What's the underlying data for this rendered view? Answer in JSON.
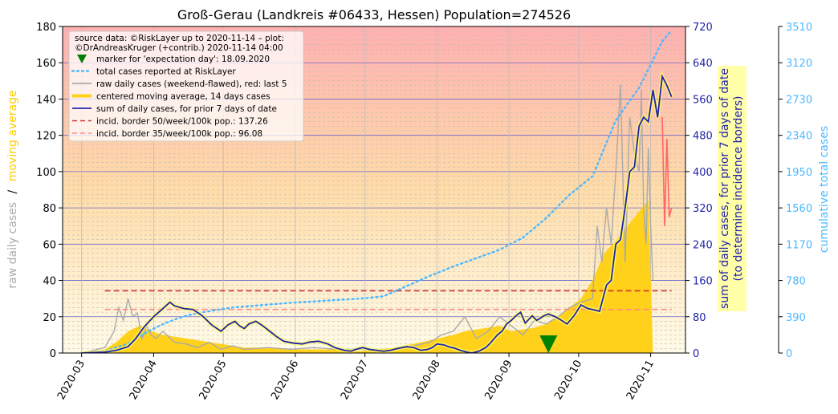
{
  "chart_data": {
    "type": "line",
    "title": "Groß-Gerau (Landkreis #06433, Hessen) Population=274526",
    "source_text": [
      "source data: ©RiskLayer up to 2020-11-14 – plot:",
      "©DrAndreasKruger (+contrib.) 2020-11-14 04:00"
    ],
    "x_labels": [
      "2020-03",
      "2020-04",
      "2020-05",
      "2020-06",
      "2020-07",
      "2020-08",
      "2020-09",
      "2020-10",
      "2020-11"
    ],
    "y_left": {
      "label_gray": "raw daily cases",
      "label_sep": "/",
      "label_gold": "moving average",
      "ticks": [
        0,
        20,
        40,
        60,
        80,
        100,
        120,
        140,
        160,
        180
      ],
      "range": [
        0,
        180
      ]
    },
    "y_right1": {
      "label_line1": "sum of daily cases, for prior 7 days of date",
      "label_line2": "(to determine incidence borders)",
      "ticks": [
        0,
        80,
        160,
        240,
        320,
        400,
        480,
        560,
        640,
        720
      ],
      "range": [
        0,
        720
      ]
    },
    "y_right2": {
      "label": "cumulative total cases",
      "ticks": [
        0,
        390,
        780,
        1170,
        1560,
        1950,
        2340,
        2730,
        3120,
        3510
      ],
      "range": [
        0,
        3510
      ]
    },
    "legend": [
      {
        "key": "marker",
        "label": "marker for 'expectation day': 18.09.2020",
        "color": "#008000"
      },
      {
        "key": "total",
        "label": "total cases reported at RiskLayer",
        "color": "#4db8ff"
      },
      {
        "key": "raw",
        "label": "raw daily cases (weekend-flawed), red: last 5",
        "color": "#aaaaaa"
      },
      {
        "key": "avg",
        "label": "centered moving average, 14 days cases",
        "color": "#ffd11a"
      },
      {
        "key": "sum7",
        "label": "sum of daily cases, for prior 7 days of date",
        "color": "#2222aa"
      },
      {
        "key": "b50",
        "label": "incid. border 50/week/100k pop.: 137.26",
        "color": "#cc3333"
      },
      {
        "key": "b35",
        "label": "incid. border 35/week/100k pop.: 96.08",
        "color": "#ff8888"
      }
    ],
    "borders": {
      "b50": 137.26,
      "b35": 96.08
    },
    "expectation_day": "2020-09-18",
    "colors": {
      "sum7": "#2222aa",
      "cumulative": "#4db8ff",
      "avg": "#ffd11a",
      "raw": "#aaaaaa",
      "recent": "#ff6666",
      "marker": "#008000"
    },
    "series": {
      "sum7_days": [
        0,
        5,
        10,
        15,
        20,
        23,
        27,
        31,
        35,
        38,
        40,
        44,
        48,
        52,
        56,
        60,
        63,
        66,
        68,
        70,
        72,
        75,
        78,
        81,
        84,
        87,
        91,
        95,
        98,
        102,
        106,
        109,
        113,
        116,
        118,
        121,
        124,
        127,
        130,
        133,
        136,
        140,
        143,
        146,
        149,
        151,
        153,
        156,
        158,
        161,
        163,
        166,
        168,
        171,
        174,
        176,
        179,
        181,
        183,
        185,
        187,
        189,
        191,
        194,
        196,
        199,
        201,
        204,
        206,
        209,
        212,
        215,
        218,
        220,
        223,
        226,
        228,
        230,
        232,
        234,
        236,
        238,
        240,
        242,
        244,
        246,
        248,
        250,
        252,
        254
      ],
      "sum7_values": [
        0,
        1,
        2,
        6,
        14,
        30,
        58,
        80,
        98,
        112,
        104,
        98,
        96,
        82,
        62,
        48,
        62,
        70,
        60,
        54,
        64,
        70,
        60,
        48,
        36,
        26,
        22,
        20,
        24,
        26,
        20,
        12,
        6,
        4,
        8,
        12,
        8,
        6,
        4,
        6,
        10,
        14,
        12,
        6,
        8,
        12,
        20,
        18,
        14,
        10,
        6,
        2,
        0,
        4,
        12,
        22,
        40,
        48,
        64,
        72,
        82,
        90,
        66,
        82,
        72,
        82,
        86,
        80,
        74,
        64,
        82,
        106,
        98,
        96,
        92,
        150,
        160,
        240,
        250,
        320,
        400,
        410,
        500,
        520,
        510,
        580,
        520,
        610,
        590,
        565
      ],
      "cum_days": [
        0,
        10,
        20,
        25,
        30,
        35,
        40,
        45,
        50,
        55,
        60,
        65,
        70,
        80,
        90,
        100,
        110,
        120,
        130,
        140,
        150,
        160,
        170,
        180,
        190,
        200,
        210,
        220,
        230,
        240,
        245,
        250,
        254
      ],
      "cum_values": [
        0,
        20,
        100,
        180,
        250,
        310,
        360,
        400,
        430,
        450,
        470,
        490,
        500,
        520,
        540,
        555,
        570,
        585,
        610,
        720,
        830,
        930,
        1020,
        1110,
        1240,
        1450,
        1700,
        1900,
        2500,
        2850,
        3100,
        3350,
        3470
      ],
      "avg_days": [
        0,
        10,
        15,
        20,
        25,
        30,
        35,
        40,
        45,
        50,
        55,
        60,
        65,
        70,
        80,
        90,
        100,
        110,
        120,
        135,
        150,
        160,
        165,
        175,
        180,
        185,
        190,
        195,
        200,
        205,
        210,
        215,
        220,
        225,
        230,
        235,
        240,
        244,
        246
      ],
      "avg_values": [
        0,
        2,
        6,
        12,
        15,
        12,
        10,
        9,
        8,
        7,
        6,
        5,
        4,
        3,
        3,
        2,
        2,
        2,
        1,
        3,
        7,
        10,
        12,
        14,
        15,
        12,
        13,
        14,
        16,
        20,
        25,
        30,
        40,
        55,
        62,
        70,
        78,
        84,
        0
      ],
      "raw_days": [
        0,
        10,
        14,
        16,
        18,
        20,
        22,
        24,
        26,
        28,
        30,
        32,
        35,
        40,
        45,
        50,
        55,
        60,
        65,
        70,
        80,
        90,
        100,
        110,
        120,
        130,
        140,
        150,
        155,
        160,
        165,
        170,
        175,
        180,
        185,
        190,
        195,
        200,
        205,
        210,
        215,
        220,
        222,
        224,
        226,
        228,
        230,
        232,
        234,
        236,
        238,
        240,
        241,
        242,
        243,
        244,
        245,
        246
      ],
      "raw_values": [
        0,
        3,
        12,
        25,
        18,
        30,
        20,
        22,
        8,
        15,
        10,
        8,
        12,
        6,
        5,
        3,
        6,
        2,
        4,
        2,
        3,
        2,
        3,
        2,
        2,
        1,
        3,
        6,
        10,
        12,
        20,
        8,
        12,
        20,
        15,
        10,
        18,
        16,
        20,
        25,
        28,
        30,
        70,
        50,
        80,
        60,
        100,
        148,
        50,
        130,
        110,
        100,
        145,
        80,
        60,
        113,
        70,
        40
      ],
      "recent_days": [
        250,
        251,
        252,
        253,
        254
      ],
      "recent_values": [
        130,
        70,
        118,
        75,
        80
      ]
    }
  }
}
